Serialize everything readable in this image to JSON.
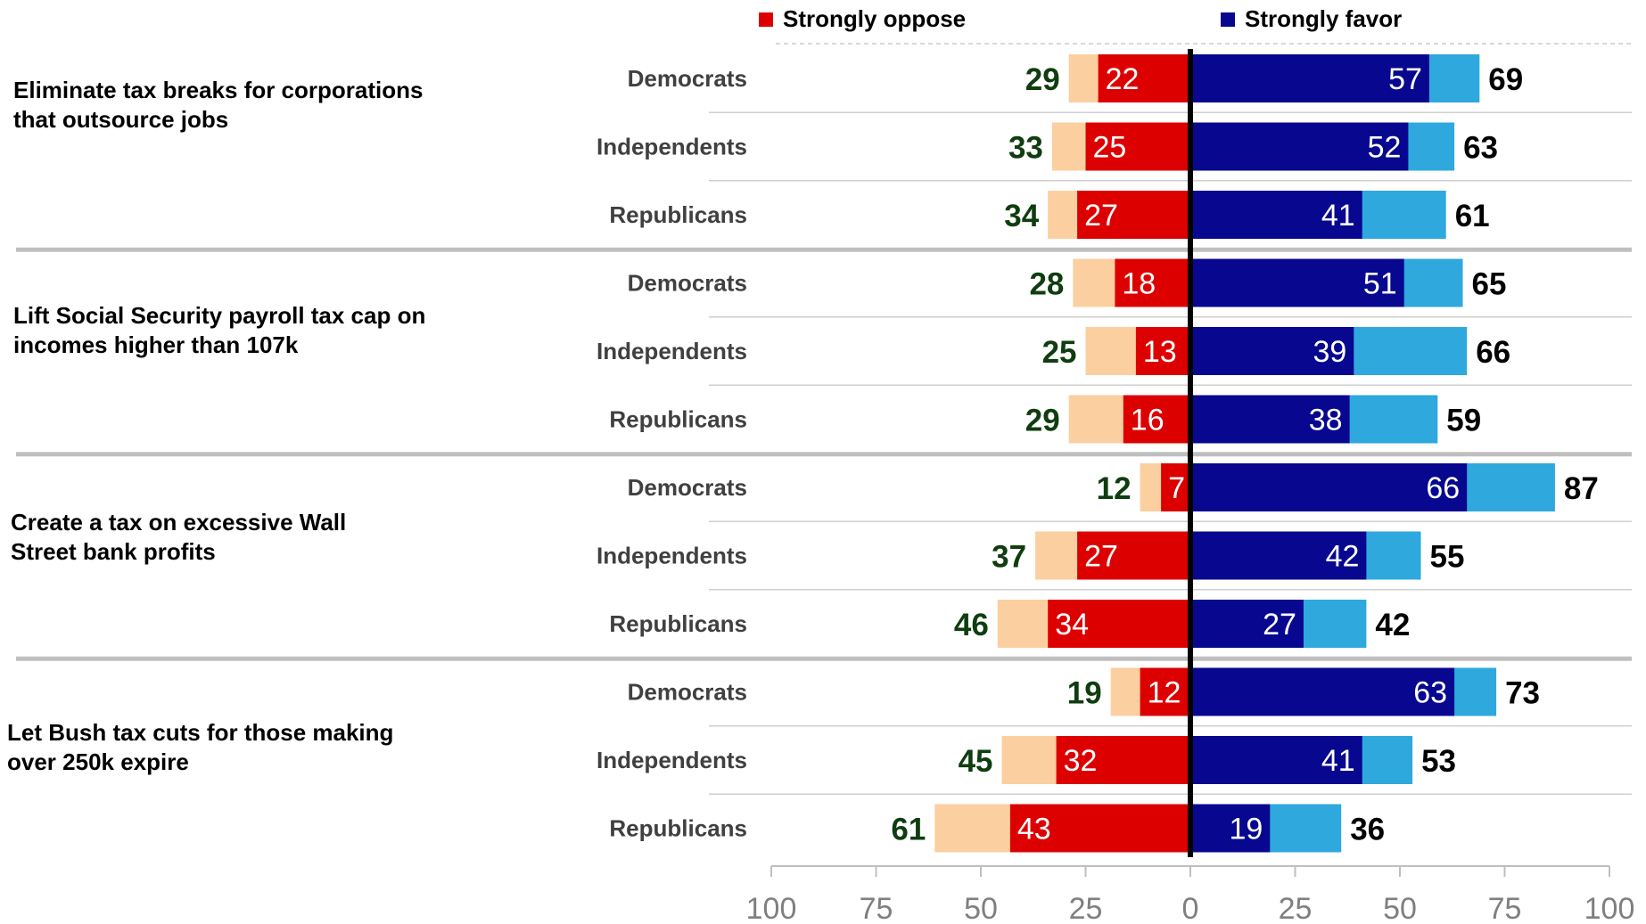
{
  "legend": {
    "oppose_label": "Strongly oppose",
    "favor_label": "Strongly favor"
  },
  "colors": {
    "strongly_oppose": "#dd0000",
    "oppose_total": "#fbcf9f",
    "strongly_favor": "#07078f",
    "favor_total": "#2ea8dd",
    "oppose_total_text": "#0f3d0f",
    "favor_total_text": "#000000"
  },
  "chart_data": {
    "type": "bar",
    "orientation": "horizontal-diverging",
    "xlim": [
      -100,
      100
    ],
    "x_ticks": [
      "100",
      "75",
      "50",
      "25",
      "0",
      "25",
      "50",
      "75",
      "100"
    ],
    "groups": [
      {
        "topic": "Eliminate tax breaks for corporations\nthat outsource jobs",
        "rows": [
          {
            "party": "Democrats",
            "oppose_total": 29,
            "strongly_oppose": 22,
            "strongly_favor": 57,
            "favor_total": 69
          },
          {
            "party": "Independents",
            "oppose_total": 33,
            "strongly_oppose": 25,
            "strongly_favor": 52,
            "favor_total": 63
          },
          {
            "party": "Republicans",
            "oppose_total": 34,
            "strongly_oppose": 27,
            "strongly_favor": 41,
            "favor_total": 61
          }
        ]
      },
      {
        "topic": "Lift Social Security payroll tax cap on\nincomes higher than 107k",
        "rows": [
          {
            "party": "Democrats",
            "oppose_total": 28,
            "strongly_oppose": 18,
            "strongly_favor": 51,
            "favor_total": 65
          },
          {
            "party": "Independents",
            "oppose_total": 25,
            "strongly_oppose": 13,
            "strongly_favor": 39,
            "favor_total": 66
          },
          {
            "party": "Republicans",
            "oppose_total": 29,
            "strongly_oppose": 16,
            "strongly_favor": 38,
            "favor_total": 59
          }
        ]
      },
      {
        "topic": "Create a tax on excessive Wall\nStreet bank profits",
        "rows": [
          {
            "party": "Democrats",
            "oppose_total": 12,
            "strongly_oppose": 7,
            "strongly_favor": 66,
            "favor_total": 87
          },
          {
            "party": "Independents",
            "oppose_total": 37,
            "strongly_oppose": 27,
            "strongly_favor": 42,
            "favor_total": 55
          },
          {
            "party": "Republicans",
            "oppose_total": 46,
            "strongly_oppose": 34,
            "strongly_favor": 27,
            "favor_total": 42
          }
        ]
      },
      {
        "topic": "Let Bush tax cuts for those making\nover 250k expire",
        "rows": [
          {
            "party": "Democrats",
            "oppose_total": 19,
            "strongly_oppose": 12,
            "strongly_favor": 63,
            "favor_total": 73
          },
          {
            "party": "Independents",
            "oppose_total": 45,
            "strongly_oppose": 32,
            "strongly_favor": 41,
            "favor_total": 53
          },
          {
            "party": "Republicans",
            "oppose_total": 61,
            "strongly_oppose": 43,
            "strongly_favor": 19,
            "favor_total": 36
          }
        ]
      }
    ]
  }
}
